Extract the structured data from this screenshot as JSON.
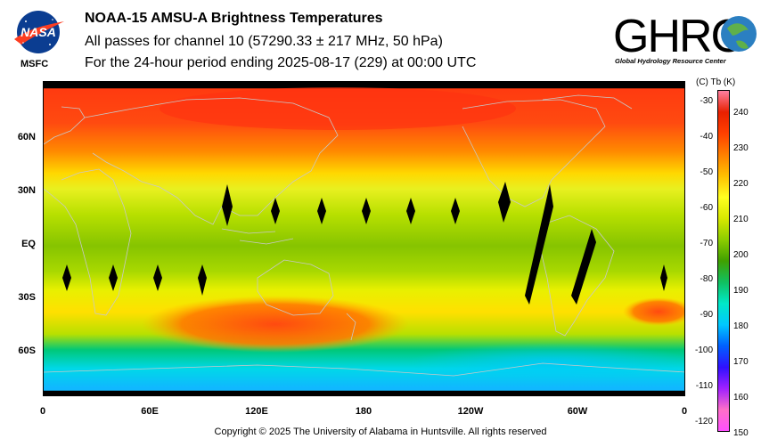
{
  "header": {
    "title": "NOAA-15 AMSU-A Brightness Temperatures",
    "subtitle": "All passes for channel 10 (57290.33 ± 217 MHz, 50 hPa)",
    "period": "For the 24-hour period ending 2025-08-17 (229) at 00:00 UTC"
  },
  "logos": {
    "nasa_text": "NASA",
    "msfc_text": "MSFC",
    "ghrc_text": "GHRC",
    "ghrc_subtext": "Global Hydrology Resource Center"
  },
  "map": {
    "lat_labels": [
      "60N",
      "30N",
      "EQ",
      "30S",
      "60S"
    ],
    "lon_labels": [
      "0",
      "60E",
      "120E",
      "180",
      "120W",
      "60W",
      "0"
    ]
  },
  "colorbar": {
    "units_label": "(C)  Tb  (K)",
    "celsius_ticks": [
      "-30",
      "-40",
      "-50",
      "-60",
      "-70",
      "-80",
      "-90",
      "-100",
      "-110",
      "-120"
    ],
    "kelvin_ticks": [
      "240",
      "230",
      "220",
      "210",
      "200",
      "190",
      "180",
      "170",
      "160",
      "150"
    ],
    "colors": [
      "#ff4fff",
      "#ff70c8",
      "#a020ff",
      "#3010ff",
      "#0060ff",
      "#00c8ff",
      "#00e8c8",
      "#10c060",
      "#40a000",
      "#8ccc00",
      "#d8e800",
      "#ffff20",
      "#ffc000",
      "#ff8000",
      "#ff4000",
      "#e82000",
      "#ff80a0"
    ]
  },
  "footer": {
    "copyright": "Copyright © 2025 The University of Alabama in Huntsville.  All rights reserved"
  }
}
